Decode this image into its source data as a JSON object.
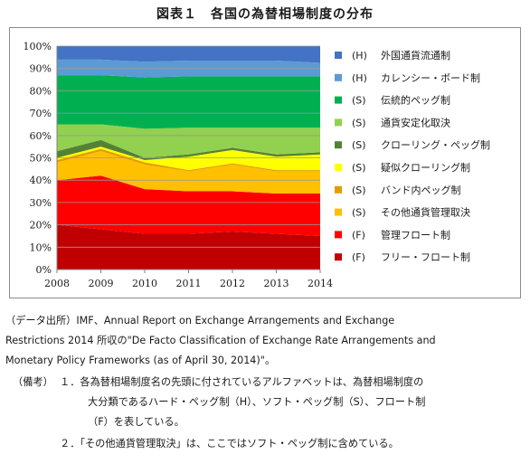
{
  "figure_title": "図表１　各国の為替相場制度の分布",
  "chart_data": {
    "type": "area",
    "stacked": true,
    "x": [
      "2008",
      "2009",
      "2010",
      "2011",
      "2012",
      "2013",
      "2014"
    ],
    "ylim": [
      0,
      100
    ],
    "yticks": [
      "0%",
      "10%",
      "20%",
      "30%",
      "40%",
      "50%",
      "60%",
      "70%",
      "80%",
      "90%",
      "100%"
    ],
    "grid": true,
    "legend_position": "right",
    "series": [
      {
        "code": "(F)",
        "name": "フリー・フロート制",
        "color": "#c00000",
        "values": [
          20,
          18,
          16,
          16,
          17,
          16,
          15
        ]
      },
      {
        "code": "(F)",
        "name": "管理フロート制",
        "color": "#ff0000",
        "values": [
          20,
          24,
          20,
          19,
          18,
          18,
          19
        ]
      },
      {
        "code": "(S)",
        "name": "その他通貨管理取決",
        "color": "#ffc000",
        "values": [
          8,
          11,
          11,
          9,
          12,
          10,
          10
        ]
      },
      {
        "code": "(S)",
        "name": "バンド内ペッグ制",
        "color": "#e59b00",
        "values": [
          1,
          1,
          1,
          0.5,
          0.5,
          0.5,
          0.5
        ]
      },
      {
        "code": "(S)",
        "name": "疑似クローリング制",
        "color": "#ffff00",
        "values": [
          1,
          1,
          1,
          6,
          6,
          6,
          7
        ]
      },
      {
        "code": "(S)",
        "name": "クローリング・ペッグ制",
        "color": "#548235",
        "values": [
          3,
          3,
          1,
          1,
          1,
          1,
          1
        ]
      },
      {
        "code": "(S)",
        "name": "通貨安定化取決",
        "color": "#92d050",
        "values": [
          12,
          7,
          13,
          12,
          9,
          12,
          11
        ]
      },
      {
        "code": "(S)",
        "name": "伝統的ペッグ制",
        "color": "#00b050",
        "values": [
          22,
          22,
          23,
          23,
          23,
          23,
          23
        ]
      },
      {
        "code": "(H)",
        "name": "カレンシー・ボード制",
        "color": "#5b9bd5",
        "values": [
          7,
          7,
          7,
          7,
          7,
          7,
          6
        ]
      },
      {
        "code": "(H)",
        "name": "外国通貨流通制",
        "color": "#4472c4",
        "values": [
          6,
          6,
          7,
          6.5,
          6.5,
          6.5,
          7.5
        ]
      }
    ]
  },
  "notes": {
    "source_line1": "（データ出所）IMF、Annual Report on Exchange Arrangements and Exchange",
    "source_line2": "Restrictions 2014 所収の\"De Facto Classification of Exchange Rate Arrangements and",
    "source_line3": "Monetary Policy Frameworks (as of April 30, 2014)\"。",
    "remarks_label": "（備考）",
    "remark1_line1": "１．各為替相場制度名の先頭に付されているアルファベットは、為替相場制度の",
    "remark1_line2": "大分類であるハード・ペッグ制（H）、ソフト・ペッグ制（S）、フロート制",
    "remark1_line3": "（F）を表している。",
    "remark2": "２．「その他通貨管理取決」は、ここではソフト・ペッグ制に含めている。"
  }
}
